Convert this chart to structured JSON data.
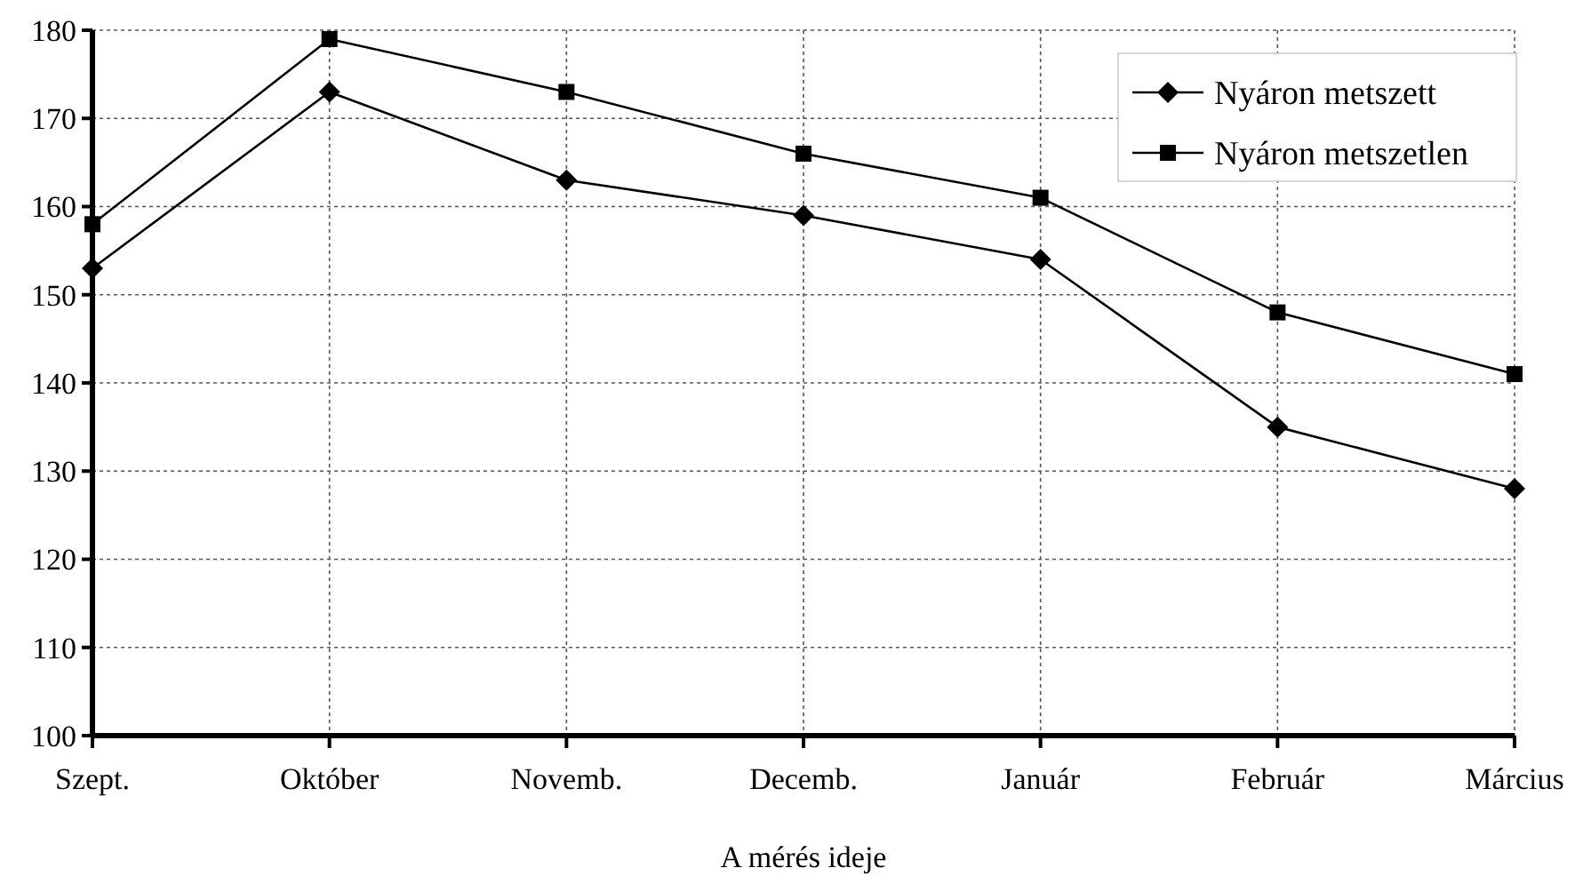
{
  "chart_data": {
    "type": "line",
    "xlabel": "A mérés ideje",
    "categories": [
      "Szept.",
      "Október",
      "Novemb.",
      "Decemb.",
      "Január",
      "Február",
      "Március"
    ],
    "series": [
      {
        "name": "Nyáron metszett",
        "color": "#000000",
        "marker": "diamond",
        "values": [
          153,
          173,
          163,
          159,
          154,
          135,
          128
        ]
      },
      {
        "name": "Nyáron metszetlen",
        "color": "#000000",
        "marker": "square",
        "values": [
          158,
          179,
          173,
          166,
          161,
          148,
          141
        ]
      }
    ],
    "ylim": [
      100,
      180
    ],
    "yticks": [
      100,
      110,
      120,
      130,
      140,
      150,
      160,
      170,
      180
    ],
    "grid": true,
    "legend": "top right",
    "line_style": "solid"
  }
}
